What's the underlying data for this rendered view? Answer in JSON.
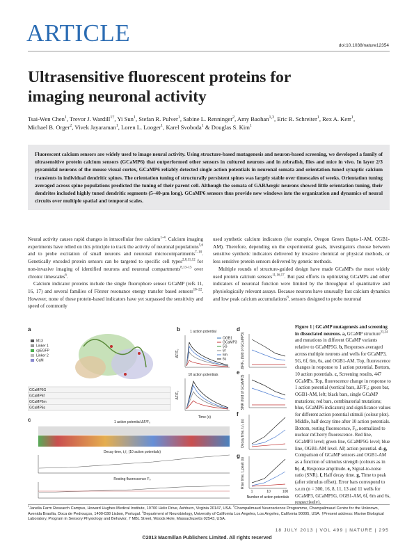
{
  "header": {
    "section": "ARTICLE",
    "doi": "doi:10.1038/nature12354"
  },
  "title": "Ultrasensitive fluorescent proteins for imaging neuronal activity",
  "authors": [
    "Tsai-Wen Chen",
    {
      "text": "1",
      "style": "sup"
    },
    ", Trevor J. Wardill",
    {
      "text": "1†",
      "style": "sup"
    },
    ", Yi Sun",
    {
      "text": "1",
      "style": "sup"
    },
    ", Stefan R. Pulver",
    {
      "text": "1",
      "style": "sup"
    },
    ", Sabine L. Renninger",
    {
      "text": "2",
      "style": "sup"
    },
    ", Amy Baohan",
    {
      "text": "1,3",
      "style": "sup"
    },
    ", Eric R. Schreiter",
    {
      "text": "1",
      "style": "sup"
    },
    ", Rex A. Kerr",
    {
      "text": "1",
      "style": "sup"
    },
    ", Michael B. Orger",
    {
      "text": "2",
      "style": "sup"
    },
    ", Vivek Jayaraman",
    {
      "text": "1",
      "style": "sup"
    },
    ", Loren L. Looger",
    {
      "text": "1",
      "style": "sup"
    },
    ", Karel Svoboda",
    {
      "text": "1",
      "style": "sup"
    },
    " & Douglas S. Kim",
    {
      "text": "1",
      "style": "sup"
    }
  ],
  "abstract": "Fluorescent calcium sensors are widely used to image neural activity. Using structure-based mutagenesis and neuron-based screening, we developed a family of ultrasensitive protein calcium sensors (GCaMP6) that outperformed other sensors in cultured neurons and in zebrafish, flies and mice in vivo. In layer 2/3 pyramidal neurons of the mouse visual cortex, GCaMP6 reliably detected single action potentials in neuronal somata and orientation-tuned synaptic calcium transients in individual dendritic spines. The orientation tuning of structurally persistent spines was largely stable over timescales of weeks. Orientation tuning averaged across spine populations predicted the tuning of their parent cell. Although the somata of GABAergic neurons showed little orientation tuning, their dendrites included highly tuned dendritic segments (5–40-µm long). GCaMP6 sensors thus provide new windows into the organization and dynamics of neural circuits over multiple spatial and temporal scales.",
  "body": {
    "left": [
      [
        "Neural activity causes rapid changes in intracellular free calcium",
        {
          "text": "1–4",
          "style": "sup"
        },
        ". Calcium imaging experiments have relied on this principle to track the activity of neuronal populations",
        {
          "text": "5,6",
          "style": "sup"
        },
        " and to probe excitation of small neurons and neuronal microcompartments",
        {
          "text": "7–10",
          "style": "sup"
        },
        ". Genetically encoded protein sensors can be targeted to specific cell types",
        {
          "text": "2,8,11,12",
          "style": "sup"
        },
        " for non-invasive imaging of identified neurons and neuronal compartments",
        {
          "text": "8,13–15",
          "style": "sup"
        },
        " over chronic timescales",
        {
          "text": "6",
          "style": "sup"
        },
        "."
      ],
      [
        "Calcium indicator proteins include the single fluorophore sensor GCaMP (refs 11, 16, 17) and several families of Förster resonance energy transfer based sensors",
        {
          "text": "18–22",
          "style": "sup"
        },
        ". However, none of these protein-based indicators have yet surpassed the sensitivity and speed of commonly"
      ]
    ],
    "right": [
      [
        "used synthetic calcium indicators (for example, Oregon Green Bapta-1-AM, OGB1-AM). Therefore, depending on the experimental goals, investigators choose between sensitive synthetic indicators delivered by invasive chemical or physical methods, or less sensitive protein sensors delivered by genetic methods."
      ],
      [
        "Multiple rounds of structure-guided design have made GCaMPs the most widely used protein calcium sensors",
        {
          "text": "11,16,17",
          "style": "sup"
        },
        ". But past efforts in optimizing GCaMPs and other indicators of neuronal function were limited by the throughput of quantitative and physiologically relevant assays. Because neurons have unusually fast calcium dynamics and low peak calcium accumulations",
        {
          "text": "8",
          "style": "sup"
        },
        ", sensors designed to probe neuronal"
      ]
    ]
  },
  "figure": {
    "a": {
      "label": "a",
      "legend": [
        "M13",
        "Linker 1",
        "cpEGFP",
        "Linker 2",
        "CaM"
      ],
      "rows": [
        "GCaMP5G",
        "GCaMP6f",
        "GCaMP6m",
        "GCaMP6s"
      ]
    },
    "b": {
      "label": "b",
      "top": "1 action potential",
      "bottom": "10 action potentials",
      "xlabel": "Time (s)",
      "ylabel": "ΔF/F₀",
      "legend": [
        "OGB1",
        "GCaMP3",
        "5G",
        "6f",
        "6m",
        "6s"
      ]
    },
    "c": {
      "label": "c",
      "top": "1 action potential ΔF/F₀",
      "middle": "Decay time, t₁/₂ (10 action potentials)",
      "bottom": "Resting fluorescence F₀"
    },
    "d": {
      "label": "d",
      "ylabel": "ΔF/F₀ (fold of GCaMP3)"
    },
    "e": {
      "label": "e",
      "ylabel": "SNR (fold of GCaMP3)"
    },
    "f": {
      "label": "f",
      "ylabel": "Decay time, t₁/₂ (s)"
    },
    "g": {
      "label": "g",
      "ylabel": "Rise time, t_peak (s)",
      "xlabel": "Number of action potentials",
      "xticks": [
        "1",
        "10",
        "100"
      ]
    },
    "caption": [
      {
        "text": "Figure 1 | GCaMP mutagenesis and screening in dissociated neurons. a,",
        "style": "bold"
      },
      " GCaMP structure",
      {
        "text": "23,24",
        "style": "sup"
      },
      " and mutations in different GCaMP variants relative to GCaMP5G. ",
      {
        "text": "b,",
        "style": "bold"
      },
      " Responses averaged across multiple neurons and wells for GCaMP3, 5G, 6f, 6m, 6s, and OGB1-AM. Top, fluorescence changes in response to 1 action potential. Bottom, 10 action potentials. ",
      {
        "text": "c,",
        "style": "bold"
      },
      " Screening results, 447 GCaMPs. Top, fluorescence change in response to 1 action potential (vertical bars, ΔF/F₀; green bar, OGB1-AM, left; black bars, single GCaMP mutations; red bars, combinatorial mutations; blue, GCaMP6 indicators) and significance values for different action potential stimuli (colour plot). Middle, half decay time after 10 action potentials. Bottom, resting fluorescence, F₀, normalized to nuclear mCherry fluorescence. Red line, GCaMP3 level; green line, GCaMP5G level; blue line, OGB1-AM level. AP, action potential. ",
      {
        "text": "d–g,",
        "style": "bold"
      },
      " Comparison of GCaMP sensors and OGB1-AM as a function of stimulus strength (colours as in ",
      {
        "text": "b",
        "style": "bold"
      },
      "). ",
      {
        "text": "d,",
        "style": "bold"
      },
      " Response amplitude. ",
      {
        "text": "e,",
        "style": "bold"
      },
      " Signal-to-noise ratio (SNR). ",
      {
        "text": "f,",
        "style": "bold"
      },
      " Half decay time. ",
      {
        "text": "g,",
        "style": "bold"
      },
      " Time to peak (after stimulus offset). Error bars correspond to s.e.m (n = 300, 16, 8, 11, 13 and 11 wells for GCaMP3, GCaMP5G, OGB1-AM, 6f, 6m and 6s, respectively)."
    ]
  },
  "affiliations": [
    {
      "text": "1",
      "style": "sup"
    },
    "Janelia Farm Research Campus, Howard Hughes Medical Institute, 19700 Helix Drive, Ashburn, Virginia 20147, USA. ",
    {
      "text": "2",
      "style": "sup"
    },
    "Champalimaud Neuroscience Programme, Champalimaud Centre for the Unknown, Avenida Brasilia, Doca de Pedrouços, 1400-038 Lisbon, Portugal. ",
    {
      "text": "3",
      "style": "sup"
    },
    "Department of Neurobiology, University of California Los Angeles, Los Angeles, California 90095, USA. †Present address: Marine Biological Laboratory, Program in Sensory Physiology and Behavior, 7 MBL Street, Woods Hole, Massachusetts 02543, USA."
  ],
  "footer": {
    "issue": "18 JULY 2013 | VOL 499 | NATURE | 295",
    "copyright": "©2013 Macmillan Publishers Limited. All rights reserved"
  }
}
